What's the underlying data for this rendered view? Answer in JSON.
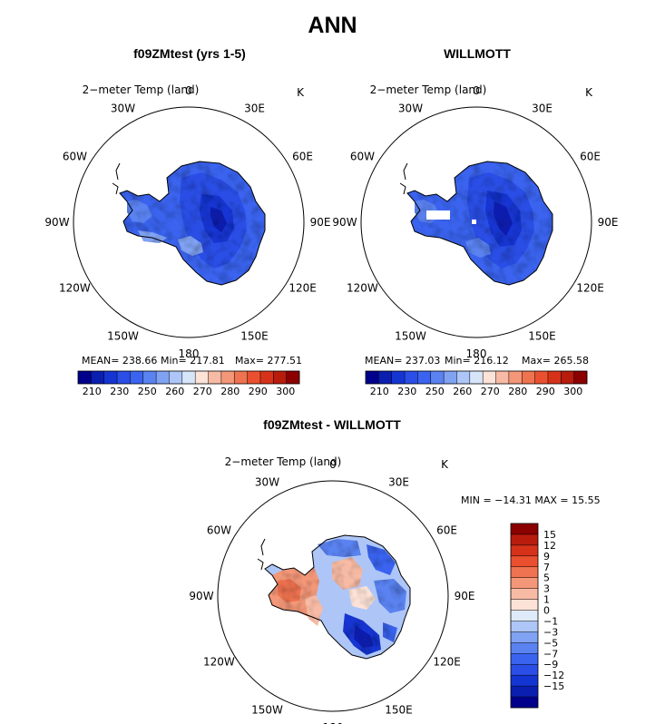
{
  "page_title": "ANN",
  "panels": [
    {
      "title": "f09ZMtest (yrs 1-5)",
      "field_label": "2−meter Temp (land)",
      "units": "K",
      "stats": {
        "mean": "MEAN= 238.66",
        "min": "Min= 217.81",
        "max": "Max= 277.51"
      }
    },
    {
      "title": "WILLMOTT",
      "field_label": "2−meter Temp (land)",
      "units": "K",
      "stats": {
        "mean": "MEAN= 237.03",
        "min": "Min= 216.12",
        "max": "Max= 265.58"
      }
    },
    {
      "title": "f09ZMtest - WILLMOTT",
      "field_label": "2−meter Temp (land)",
      "units": "K",
      "stats": {
        "minmax": "MIN = −14.31  MAX =  15.55"
      }
    }
  ],
  "lon_labels": [
    "0",
    "30E",
    "60E",
    "90E",
    "120E",
    "150E",
    "180",
    "150W",
    "120W",
    "90W",
    "60W",
    "30W"
  ],
  "colorbar_abs": {
    "colors": [
      "#00008b",
      "#0a1eb0",
      "#1535d2",
      "#2a4ee6",
      "#3a64f0",
      "#5a82f0",
      "#80a2f2",
      "#adc6f7",
      "#d7e5fb",
      "#fde3d7",
      "#f7bba5",
      "#f39778",
      "#ef7350",
      "#ea502f",
      "#d6321a",
      "#b71c0d",
      "#8b0000"
    ],
    "labels": [
      "210",
      "230",
      "250",
      "260",
      "270",
      "280",
      "290",
      "300"
    ]
  },
  "colorbar_diff": {
    "colors": [
      "#00008b",
      "#0a1eb0",
      "#1535d2",
      "#2a4ee6",
      "#3a64f0",
      "#5a82f0",
      "#80a2f2",
      "#adc6f7",
      "#dfeaf9",
      "#fde3d7",
      "#f7bba5",
      "#f39778",
      "#ef7350",
      "#ea502f",
      "#d6321a",
      "#b71c0d",
      "#8b0000"
    ],
    "labels": [
      "15",
      "12",
      "9",
      "7",
      "5",
      "3",
      "1",
      "0",
      "−1",
      "−3",
      "−5",
      "−7",
      "−9",
      "−12",
      "−15"
    ]
  },
  "chart_data": [
    {
      "type": "heatmap",
      "title": "f09ZMtest (yrs 1-5)",
      "variable": "2−meter Temp (land)",
      "units": "K",
      "projection": "south polar stereographic",
      "mean": 238.66,
      "min": 217.81,
      "max": 277.51,
      "contour_levels": [
        210,
        220,
        230,
        240,
        250,
        255,
        260,
        265,
        270,
        275,
        280,
        285,
        290,
        295,
        300
      ]
    },
    {
      "type": "heatmap",
      "title": "WILLMOTT",
      "variable": "2−meter Temp (land)",
      "units": "K",
      "projection": "south polar stereographic",
      "mean": 237.03,
      "min": 216.12,
      "max": 265.58,
      "contour_levels": [
        210,
        220,
        230,
        240,
        250,
        255,
        260,
        265,
        270,
        275,
        280,
        285,
        290,
        295,
        300
      ]
    },
    {
      "type": "heatmap",
      "title": "f09ZMtest - WILLMOTT",
      "variable": "2−meter Temp (land)",
      "units": "K",
      "projection": "south polar stereographic",
      "min": -14.31,
      "max": 15.55,
      "contour_levels": [
        -15,
        -12,
        -9,
        -7,
        -5,
        -3,
        -1,
        0,
        1,
        3,
        5,
        7,
        9,
        12,
        15
      ]
    }
  ]
}
